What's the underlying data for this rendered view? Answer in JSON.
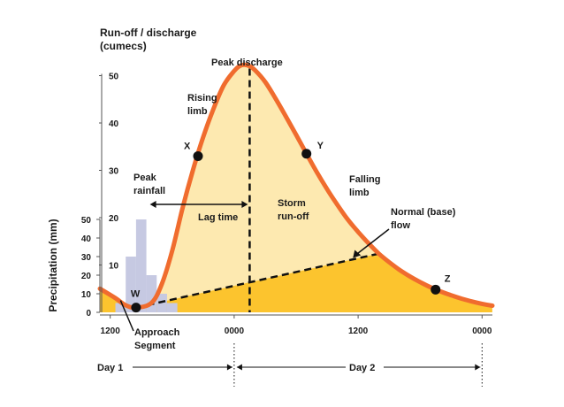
{
  "chart_data": {
    "type": "area",
    "title": "",
    "y_axis_title": [
      "Run-off / discharge",
      "(cumecs)"
    ],
    "y_ticks": [
      10,
      20,
      30,
      40,
      50
    ],
    "ylim": [
      0,
      50
    ],
    "precip_axis_title": "Precipitation (mm)",
    "precip_ticks": [
      0,
      10,
      20,
      30,
      40,
      50
    ],
    "precip_lim": [
      0,
      50
    ],
    "x_ticks": [
      "1200",
      "0000",
      "1200",
      "0000"
    ],
    "x_tick_hours": [
      12,
      24,
      36,
      48
    ],
    "xlim_hours": [
      11,
      49
    ],
    "days": [
      {
        "label": "Day 1",
        "start_hour": 12,
        "end_hour": 24
      },
      {
        "label": "Day 2",
        "start_hour": 24,
        "end_hour": 48
      }
    ],
    "hydrograph": {
      "hours": [
        11,
        12.5,
        13.5,
        14.5,
        16,
        17,
        18,
        19,
        20,
        21,
        22,
        23,
        24,
        24.5,
        25,
        25.5,
        26,
        27,
        28,
        29,
        30,
        31,
        32,
        33,
        34,
        35,
        36,
        37,
        38,
        39,
        40,
        41,
        42,
        43,
        44,
        45,
        46,
        47,
        48,
        49
      ],
      "discharge": [
        5,
        3,
        1.5,
        1,
        2,
        6,
        13,
        22,
        30,
        37,
        43,
        48,
        51,
        52,
        52.3,
        52,
        51.2,
        48.7,
        45.2,
        41.4,
        37.5,
        33.5,
        29.6,
        26,
        22.7,
        19.6,
        17,
        14.6,
        12.4,
        10.6,
        9,
        7.6,
        6.4,
        5.3,
        4.4,
        3.6,
        2.9,
        2.3,
        1.8,
        1.4
      ]
    },
    "baseflow_separation": {
      "hours": [
        14.5,
        38
      ],
      "discharge": [
        1,
        12.4
      ]
    },
    "rainfall_bars": [
      {
        "start_hour": 12.5,
        "end_hour": 13.5,
        "mm": 5
      },
      {
        "start_hour": 13.5,
        "end_hour": 14.5,
        "mm": 30
      },
      {
        "start_hour": 14.5,
        "end_hour": 15.5,
        "mm": 50
      },
      {
        "start_hour": 15.5,
        "end_hour": 16.5,
        "mm": 20
      },
      {
        "start_hour": 16.5,
        "end_hour": 17.5,
        "mm": 10
      },
      {
        "start_hour": 17.5,
        "end_hour": 18.5,
        "mm": 5
      }
    ],
    "points": [
      {
        "label": "W",
        "hour": 14.5,
        "discharge": 1
      },
      {
        "label": "X",
        "hour": 20.5,
        "discharge": 33
      },
      {
        "label": "Y",
        "hour": 31,
        "discharge": 33.5
      },
      {
        "label": "Z",
        "hour": 43.5,
        "discharge": 4.8
      }
    ],
    "peak_discharge_hour": 25.5,
    "peak_rainfall_hour": 15.5,
    "annotations": {
      "peak_discharge": "Peak discharge",
      "rising_limb": [
        "Rising",
        "limb"
      ],
      "falling_limb": [
        "Falling",
        "limb"
      ],
      "peak_rainfall": [
        "Peak",
        "rainfall"
      ],
      "lag_time": "Lag time",
      "storm_runoff": [
        "Storm",
        "run-off"
      ],
      "normal_flow": [
        "Normal (base)",
        "flow"
      ],
      "approach_segment": [
        "Approach",
        "Segment"
      ]
    },
    "colors": {
      "curve": "#f06c2e",
      "storm_fill": "#fde9b0",
      "base_fill": "#fcc42e",
      "rain": "#c6c9e2",
      "axis": "#333333"
    }
  }
}
